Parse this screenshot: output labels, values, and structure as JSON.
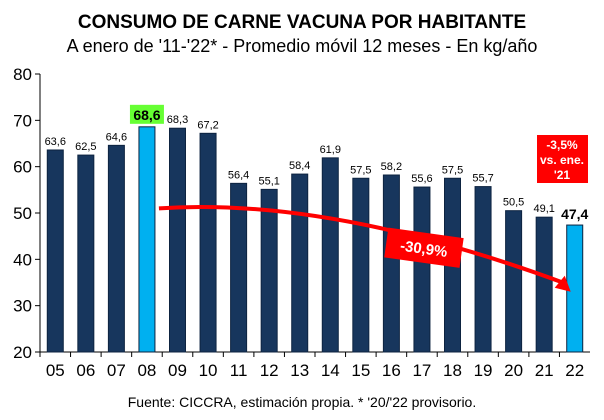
{
  "chart_data": {
    "type": "bar",
    "title": "CONSUMO DE CARNE VACUNA POR HABITANTE",
    "subtitle": "A enero de '11-'22* - Promedio móvil 12 meses -  En kg/año",
    "categories": [
      "05",
      "06",
      "07",
      "08",
      "09",
      "10",
      "11",
      "12",
      "13",
      "14",
      "15",
      "16",
      "17",
      "18",
      "19",
      "20",
      "21",
      "22"
    ],
    "values": [
      63.6,
      62.5,
      64.6,
      68.6,
      68.3,
      67.2,
      56.4,
      55.1,
      58.4,
      61.9,
      57.5,
      58.2,
      55.6,
      57.5,
      55.7,
      50.5,
      49.1,
      47.4
    ],
    "labels": [
      "63,6",
      "62,5",
      "64,6",
      "68,6",
      "68,3",
      "67,2",
      "56,4",
      "55,1",
      "58,4",
      "61,9",
      "57,5",
      "58,2",
      "55,6",
      "57,5",
      "55,7",
      "50,5",
      "49,1",
      "47,4"
    ],
    "highlight": [
      "08",
      "22"
    ],
    "ylim": [
      20,
      80
    ],
    "yticks": [
      20,
      30,
      40,
      50,
      60,
      70,
      80
    ],
    "xlabel": "",
    "ylabel": "",
    "grid": false,
    "annotations": {
      "change_total": "-30,9%",
      "change_yoy": [
        "-3,5%",
        "vs. ene.",
        "'21"
      ]
    },
    "colors": {
      "bar": "#17365d",
      "highlight": "#00b0f0",
      "peak_label_bg": "#66ff33",
      "accent": "#ff0000"
    },
    "source": "Fuente: CICCRA, estimación propia. * '20/'22 provisorio."
  }
}
